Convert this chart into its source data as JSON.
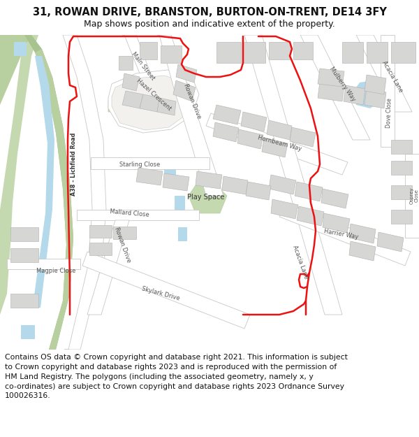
{
  "title": "31, ROWAN DRIVE, BRANSTON, BURTON-ON-TRENT, DE14 3FY",
  "subtitle": "Map shows position and indicative extent of the property.",
  "footer_lines": [
    "Contains OS data © Crown copyright and database right 2021. This information is subject",
    "to Crown copyright and database rights 2023 and is reproduced with the permission of",
    "HM Land Registry. The polygons (including the associated geometry, namely x, y",
    "co-ordinates) are subject to Crown copyright and database rights 2023 Ordnance Survey",
    "100026316."
  ],
  "title_fontsize": 10.5,
  "subtitle_fontsize": 9.0,
  "footer_fontsize": 7.8,
  "map_bg": "#f2f1ee",
  "road_white": "#ffffff",
  "road_edge": "#c8c8c8",
  "bldg_fill": "#d6d6d4",
  "bldg_edge": "#b0b0ae",
  "green1": "#c5d9b0",
  "green2": "#b8cfa0",
  "green3": "#a8c290",
  "water": "#b3d9ea",
  "red": "#ee1111",
  "red_lw": 1.8,
  "label_color": "#555555",
  "bold_label": "#222222",
  "fig_bg": "#ffffff"
}
